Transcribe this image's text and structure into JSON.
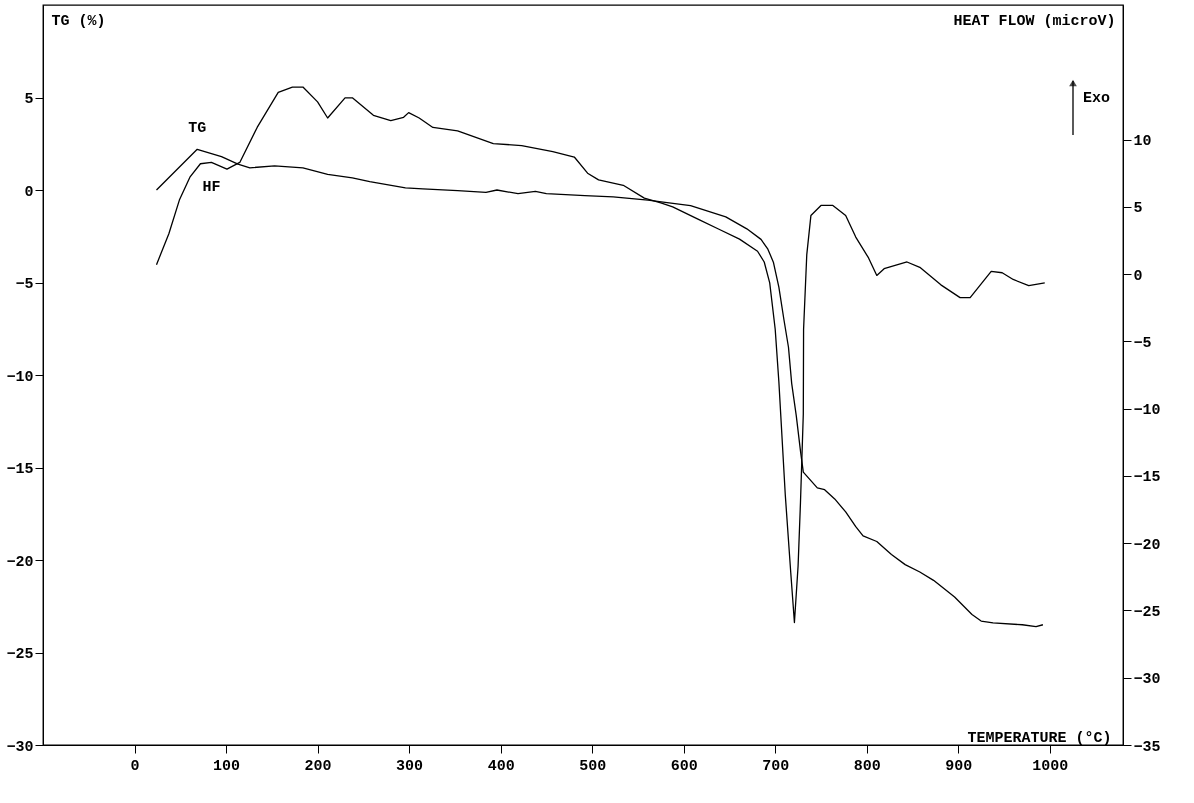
{
  "chart_data": {
    "type": "line",
    "xlabel": "TEMPERATURE (°C)",
    "ylabel": "TG (%)",
    "y2label": "HEAT FLOW (microV)",
    "annotations": [
      "Exo"
    ],
    "xlim": [
      -100,
      1080
    ],
    "xticks": [
      0,
      100,
      200,
      300,
      400,
      500,
      600,
      700,
      800,
      900,
      1000
    ],
    "ylim": [
      -30,
      10
    ],
    "yticks": [
      -30,
      -25,
      -20,
      -15,
      -10,
      -5,
      0,
      5
    ],
    "y2lim": [
      -35,
      20
    ],
    "y2ticks": [
      -35,
      -30,
      -25,
      -20,
      -15,
      -10,
      -5,
      0,
      5,
      10
    ],
    "grid": false,
    "marker": "none",
    "line_style": "solid",
    "series": [
      {
        "name": "TG",
        "color": "#000000",
        "x": [
          24,
          68.5,
          95,
          113,
          126,
          153,
          184,
          211,
          238,
          257,
          296,
          315,
          353,
          384,
          396,
          419,
          438,
          450,
          492,
          523,
          561,
          584,
          607.5,
          646,
          669,
          684.5,
          692,
          698,
          704,
          709.5,
          714.5,
          718,
          723,
          727.6,
          730.7,
          746,
          754,
          765,
          777,
          788,
          796,
          811,
          827,
          842,
          858,
          873,
          896,
          915,
          925,
          938,
          970,
          985,
          992.5
        ],
        "values": [
          0.0,
          2.2,
          1.8,
          1.4,
          1.2,
          1.3,
          1.2,
          0.85,
          0.66,
          0.45,
          0.12,
          0.06,
          -0.03,
          -0.13,
          0.0,
          -0.2,
          -0.07,
          -0.2,
          -0.3,
          -0.37,
          -0.55,
          -0.7,
          -0.84,
          -1.45,
          -2.1,
          -2.67,
          -3.2,
          -3.9,
          -5.25,
          -7.0,
          -8.5,
          -10.45,
          -12.2,
          -14.1,
          -15.25,
          -16.1,
          -16.2,
          -16.7,
          -17.4,
          -18.2,
          -18.7,
          -19.0,
          -19.7,
          -20.25,
          -20.65,
          -21.1,
          -22.0,
          -22.95,
          -23.3,
          -23.4,
          -23.5,
          -23.6,
          -23.5
        ]
      },
      {
        "name": "HF",
        "color": "#000000",
        "axis": "y2",
        "x": [
          24,
          37.5,
          49,
          60.5,
          72,
          84,
          101,
          115,
          134,
          157,
          172.5,
          184,
          200,
          211,
          230,
          238,
          261,
          280,
          294,
          299.5,
          311,
          326,
          353,
          392,
          423,
          457,
          480.5,
          495,
          507,
          534,
          557,
          575,
          588,
          615,
          638,
          661,
          680.7,
          688,
          694,
          700,
          704,
          706,
          711,
          717,
          721,
          725,
          727.6,
          730.7,
          731,
          734.5,
          739,
          750,
          763,
          777,
          788,
          802,
          811,
          819,
          844,
          858,
          881,
          902,
          913,
          936,
          948,
          960,
          977,
          994.5
        ],
        "values": [
          0.7,
          3.0,
          5.5,
          7.2,
          8.2,
          8.3,
          7.8,
          8.3,
          10.9,
          13.5,
          13.9,
          13.9,
          12.8,
          11.6,
          13.1,
          13.1,
          11.8,
          11.4,
          11.65,
          12.0,
          11.6,
          10.9,
          10.65,
          9.7,
          9.55,
          9.1,
          8.7,
          7.5,
          7.0,
          6.6,
          5.65,
          5.3,
          5.0,
          4.1,
          3.35,
          2.6,
          1.7,
          0.9,
          -0.65,
          -4.1,
          -8.0,
          -10.4,
          -16.4,
          -22.2,
          -25.9,
          -21.7,
          -17.0,
          -10.4,
          -4.1,
          1.45,
          4.35,
          5.1,
          5.1,
          4.35,
          2.75,
          1.2,
          -0.1,
          0.4,
          0.9,
          0.5,
          -0.8,
          -1.75,
          -1.75,
          0.2,
          0.1,
          -0.4,
          -0.85,
          -0.65
        ]
      }
    ]
  }
}
